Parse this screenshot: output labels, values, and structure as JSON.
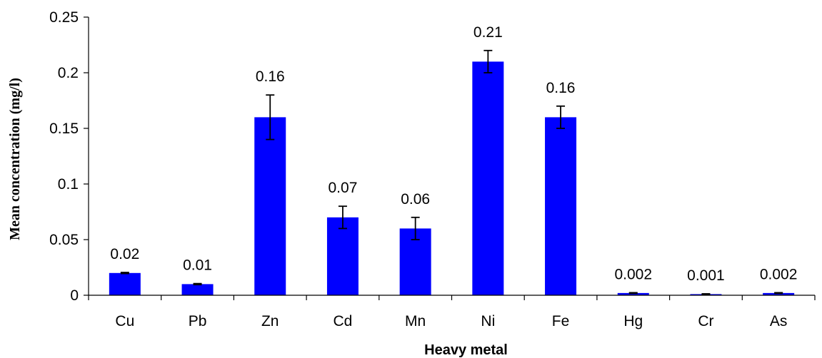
{
  "chart_data": {
    "type": "bar",
    "title": "",
    "xlabel": "Heavy metal",
    "ylabel": "Mean concentration (mg/l)",
    "ylim": [
      0,
      0.25
    ],
    "yticks": [
      0,
      0.05,
      0.1,
      0.15,
      0.2,
      0.25
    ],
    "ytick_labels": [
      "0",
      "0.05",
      "0.1",
      "0.15",
      "0.2",
      "0.25"
    ],
    "categories": [
      "Cu",
      "Pb",
      "Zn",
      "Cd",
      "Mn",
      "Ni",
      "Fe",
      "Hg",
      "Cr",
      "As"
    ],
    "values": [
      0.02,
      0.01,
      0.16,
      0.07,
      0.06,
      0.21,
      0.16,
      0.002,
      0.001,
      0.002
    ],
    "data_labels": [
      "0.02",
      "0.01",
      "0.16",
      "0.07",
      "0.06",
      "0.21",
      "0.16",
      "0.002",
      "0.001",
      "0.002"
    ],
    "error": [
      0.0005,
      0.0005,
      0.02,
      0.01,
      0.01,
      0.01,
      0.01,
      0.0003,
      0.0003,
      0.0003
    ],
    "grid": false,
    "legend": "none",
    "bar_color": "#0000ff"
  }
}
